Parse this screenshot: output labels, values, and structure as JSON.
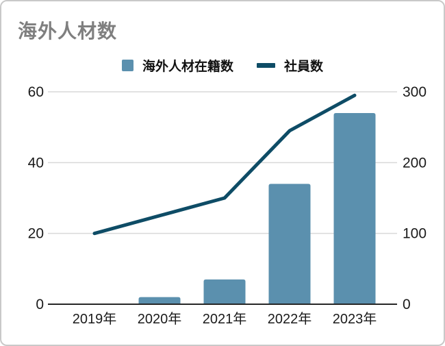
{
  "header": {
    "title": "海外人材数"
  },
  "legend": {
    "bar_label": "海外人材在籍数",
    "line_label": "社員数"
  },
  "colors": {
    "bar": "#5b90ae",
    "line": "#0e4c66",
    "title": "#7f7f7f",
    "gridline": "#d9d9d9",
    "baseline": "#262626",
    "axis_text": "#1a1a1a"
  },
  "chart_data": {
    "type": "bar",
    "subtype": "combo-bar-line",
    "title": "海外人材数",
    "categories": [
      "2019年",
      "2020年",
      "2021年",
      "2022年",
      "2023年"
    ],
    "series": [
      {
        "name": "海外人材在籍数",
        "type": "bar",
        "axis": "left",
        "color": "#5b90ae",
        "values": [
          0,
          2,
          7,
          34,
          54
        ]
      },
      {
        "name": "社員数",
        "type": "line",
        "axis": "right",
        "color": "#0e4c66",
        "values": [
          100,
          125,
          150,
          245,
          295
        ]
      }
    ],
    "left_axis": {
      "range": [
        0,
        60
      ],
      "ticks": [
        0,
        20,
        40,
        60
      ]
    },
    "right_axis": {
      "range": [
        0,
        300
      ],
      "ticks": [
        0,
        100,
        200,
        300
      ]
    },
    "grid": true,
    "legend_position": "top-center",
    "xlabel": "",
    "ylabel_left": "",
    "ylabel_right": ""
  }
}
